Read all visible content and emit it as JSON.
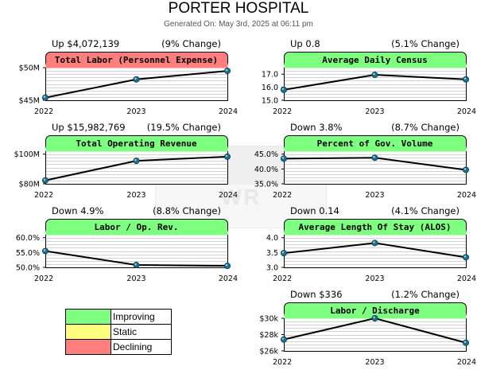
{
  "report": {
    "title": "PORTER HOSPITAL",
    "generated": "Generated On: May 3rd, 2025 at 06:11 pm"
  },
  "colors": {
    "improving": "#7fff7f",
    "static": "#ffff7f",
    "declining": "#ff7f7f",
    "line": "#000000",
    "marker": "#1f6f8f"
  },
  "legend": [
    {
      "label": "Improving",
      "color": "#7fff7f"
    },
    {
      "label": "Static",
      "color": "#ffff7f"
    },
    {
      "label": "Declining",
      "color": "#ff7f7f"
    }
  ],
  "chart_data": [
    {
      "type": "line",
      "title": "Total Labor (Personnel Expense)",
      "status": "declining",
      "change_left": "Up $4,072,139",
      "change_right": "(9% Change)",
      "categories": [
        "2022",
        "2023",
        "2024"
      ],
      "values": [
        45.4,
        48.2,
        49.5
      ],
      "ylim": [
        45,
        50
      ],
      "yticks": [
        45,
        50
      ],
      "ytick_labels": [
        "$45M",
        "$50M"
      ],
      "grid": true
    },
    {
      "type": "line",
      "title": "Average Daily Census",
      "status": "improving",
      "change_left": "Up 0.8",
      "change_right": "(5.1% Change)",
      "categories": [
        "2022",
        "2023",
        "2024"
      ],
      "values": [
        15.8,
        16.95,
        16.6
      ],
      "ylim": [
        15,
        17.5
      ],
      "yticks": [
        15,
        16,
        17
      ],
      "ytick_labels": [
        "15.0",
        "16.0",
        "17.0"
      ],
      "grid": true
    },
    {
      "type": "line",
      "title": "Total Operating Revenue",
      "status": "improving",
      "change_left": "Up $15,982,769",
      "change_right": "(19.5% Change)",
      "categories": [
        "2022",
        "2023",
        "2024"
      ],
      "values": [
        82.3,
        95.5,
        98.3
      ],
      "ylim": [
        80,
        102
      ],
      "yticks": [
        80,
        100
      ],
      "ytick_labels": [
        "$80M",
        "$100M"
      ],
      "grid": true
    },
    {
      "type": "line",
      "title": "Percent of Gov. Volume",
      "status": "improving",
      "change_left": "Down 3.8%",
      "change_right": "(8.7% Change)",
      "categories": [
        "2022",
        "2023",
        "2024"
      ],
      "values": [
        43.5,
        43.8,
        39.7
      ],
      "ylim": [
        35,
        46
      ],
      "yticks": [
        35,
        40,
        45
      ],
      "ytick_labels": [
        "35.0%",
        "40.0%",
        "45.0%"
      ],
      "grid": true
    },
    {
      "type": "line",
      "title": "Labor / Op. Rev.",
      "status": "improving",
      "change_left": "Down 4.9%",
      "change_right": "(8.8% Change)",
      "categories": [
        "2022",
        "2023",
        "2024"
      ],
      "values": [
        55.5,
        50.8,
        50.5
      ],
      "ylim": [
        50,
        61
      ],
      "yticks": [
        50,
        55,
        60
      ],
      "ytick_labels": [
        "50.0%",
        "55.0%",
        "60.0%"
      ],
      "grid": true
    },
    {
      "type": "line",
      "title": "Average Length Of Stay (ALOS)",
      "status": "improving",
      "change_left": "Down 0.14",
      "change_right": "(4.1% Change)",
      "categories": [
        "2022",
        "2023",
        "2024"
      ],
      "values": [
        3.48,
        3.82,
        3.34
      ],
      "ylim": [
        3,
        4.1
      ],
      "yticks": [
        3,
        3.5,
        4
      ],
      "ytick_labels": [
        "3.0",
        "3.5",
        "4.0"
      ],
      "grid": true
    },
    {
      "type": "line",
      "title": "Labor / Discharge",
      "status": "improving",
      "change_left": "Down $336",
      "change_right": "(1.2% Change)",
      "categories": [
        "2022",
        "2023",
        "2024"
      ],
      "values": [
        27400,
        30000,
        27000
      ],
      "ylim": [
        26000,
        30000
      ],
      "yticks": [
        26000,
        28000,
        30000
      ],
      "ytick_labels": [
        "$26k",
        "$28k",
        "$30k"
      ],
      "grid": true
    }
  ]
}
